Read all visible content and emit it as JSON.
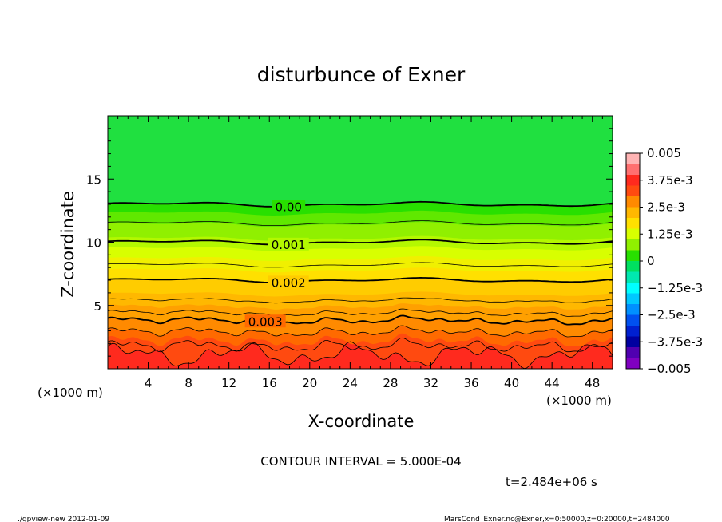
{
  "chart_data": {
    "type": "contour",
    "title": "disturbunce of Exner",
    "xlabel": "X-coordinate",
    "ylabel": "Z-coordinate",
    "x_unit_left": "(×1000 m)",
    "x_unit_right": "(×1000 m)",
    "xlim": [
      0,
      50
    ],
    "ylim": [
      0,
      20
    ],
    "xticks": [
      "4",
      "8",
      "12",
      "16",
      "20",
      "24",
      "28",
      "32",
      "36",
      "40",
      "44",
      "48"
    ],
    "yticks": [
      "5",
      "10",
      "15"
    ],
    "contour_interval_text": "CONTOUR INTERVAL = 5.000E-04",
    "time_text": "t=2.484e+06 s",
    "contour_labels": [
      {
        "text": "0.00",
        "value": 0.0,
        "z": 13.0
      },
      {
        "text": "0.001",
        "value": 0.001,
        "z": 10.0
      },
      {
        "text": "0.002",
        "value": 0.002,
        "z": 7.0
      },
      {
        "text": "0.003",
        "value": 0.003,
        "z": 3.8
      }
    ],
    "colorbar": {
      "ticks": [
        "0.005",
        "3.75e-3",
        "2.5e-3",
        "1.25e-3",
        "0",
        "−1.25e-3",
        "−2.5e-3",
        "−3.75e-3",
        "−0.005"
      ],
      "range": [
        -0.005,
        0.005
      ],
      "colors_top_to_bottom": [
        "#ffb4b4",
        "#ff7070",
        "#ff2a1e",
        "#ff4a10",
        "#ff8a00",
        "#ffb800",
        "#ffe000",
        "#d8ff00",
        "#90f000",
        "#28e000",
        "#00e060",
        "#00e8b0",
        "#00ffff",
        "#00c8ff",
        "#0090ff",
        "#0050f0",
        "#0020d0",
        "#0000a0",
        "#5000b0",
        "#8000c0"
      ]
    },
    "field_colors": [
      "#ff2a1e",
      "#ff4a10",
      "#ff6a00",
      "#ff8a00",
      "#ffa000",
      "#ffb800",
      "#ffcc00",
      "#ffe000",
      "#f0f000",
      "#d8ff00",
      "#b4f800",
      "#90f000",
      "#60e800",
      "#28e000",
      "#20e040"
    ]
  },
  "footer": {
    "left": "./gpview-new   2012-01-09",
    "right": "MarsCond_Exner.nc@Exner,x=0:50000,z=0:20000,t=2484000"
  }
}
